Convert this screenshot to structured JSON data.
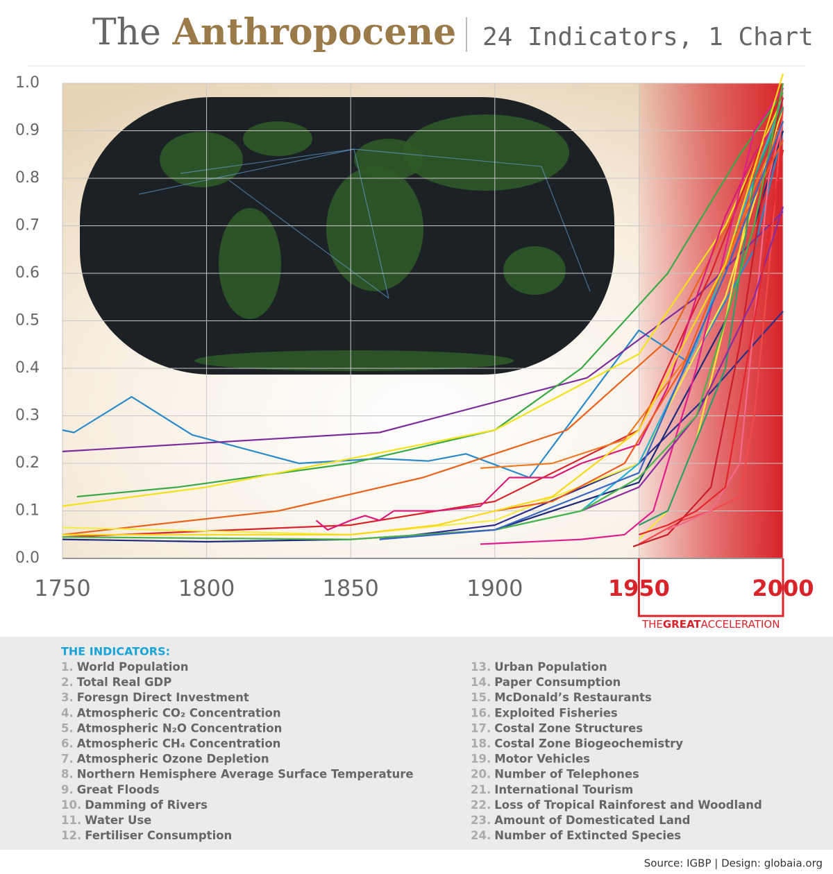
{
  "chart_data": {
    "type": "line",
    "title_prefix": "The",
    "title": "Anthropocene",
    "subtitle": "24 Indicators, 1 Chart",
    "xlim": [
      1750,
      2000
    ],
    "xticks": [
      1750,
      1800,
      1850,
      1900,
      1950,
      2000
    ],
    "ylim": [
      0,
      1
    ],
    "yticks": [
      {
        "value": 0,
        "label": "0.0"
      },
      0.1,
      0.2,
      0.3,
      0.4,
      0.5,
      0.6,
      0.7,
      0.8,
      0.9,
      {
        "value": 1,
        "label": "1.0"
      }
    ],
    "grid": true,
    "highlight": {
      "from": 1950,
      "to": 2000,
      "color": "#d8232a",
      "label_prefix": "THE",
      "label_bold": "GREAT",
      "label_suffix": "ACCELERATION"
    },
    "series": [
      {
        "color": "#2a8ac8",
        "x": [
          1750,
          1754,
          1774,
          1795,
          1832,
          1860,
          1877,
          1890,
          1912,
          1950,
          1968,
          1990,
          2000
        ],
        "values": [
          0.27,
          0.265,
          0.34,
          0.26,
          0.2,
          0.21,
          0.205,
          0.22,
          0.17,
          0.48,
          0.41,
          0.65,
          0.9
        ]
      },
      {
        "color": "#7b2d9b",
        "x": [
          1750,
          1860,
          1932,
          1970,
          2000
        ],
        "values": [
          0.225,
          0.265,
          0.38,
          0.55,
          0.73
        ]
      },
      {
        "color": "#3aa845",
        "x": [
          1755,
          1790,
          1850,
          1900,
          1930,
          1960,
          1985,
          2000
        ],
        "values": [
          0.13,
          0.15,
          0.2,
          0.27,
          0.4,
          0.6,
          0.85,
          0.98
        ]
      },
      {
        "color": "#f2e21c",
        "x": [
          1750,
          1800,
          1850,
          1900,
          1950,
          1980,
          2000
        ],
        "values": [
          0.11,
          0.15,
          0.21,
          0.27,
          0.43,
          0.7,
          0.97
        ]
      },
      {
        "color": "#e8641c",
        "x": [
          1750,
          1825,
          1875,
          1925,
          1960,
          1985,
          2000
        ],
        "values": [
          0.05,
          0.1,
          0.17,
          0.27,
          0.46,
          0.75,
          0.95
        ]
      },
      {
        "color": "#d8232a",
        "x": [
          1750,
          1850,
          1900,
          1950,
          1975,
          2000
        ],
        "values": [
          0.045,
          0.07,
          0.12,
          0.27,
          0.6,
          0.99
        ]
      },
      {
        "color": "#d81b79",
        "x": [
          1838,
          1842,
          1850,
          1855,
          1860,
          1865,
          1870,
          1880,
          1895,
          1900,
          1905,
          1920,
          1930,
          1940,
          1950,
          1960,
          1970,
          1980,
          1990,
          2000
        ],
        "values": [
          0.08,
          0.06,
          0.08,
          0.09,
          0.08,
          0.1,
          0.1,
          0.1,
          0.11,
          0.14,
          0.17,
          0.17,
          0.2,
          0.22,
          0.24,
          0.36,
          0.55,
          0.72,
          0.85,
          0.94
        ]
      },
      {
        "color": "#2b2d8c",
        "x": [
          1860,
          1900,
          1950,
          1975,
          2000
        ],
        "values": [
          0.04,
          0.07,
          0.2,
          0.35,
          0.52
        ]
      },
      {
        "color": "#f5ec4a",
        "x": [
          1750,
          1850,
          1900,
          1950,
          1980,
          2000
        ],
        "values": [
          0.065,
          0.05,
          0.08,
          0.2,
          0.55,
          0.95
        ]
      },
      {
        "color": "#1d2a7a",
        "x": [
          1750,
          1800,
          1850,
          1900,
          1950,
          1980,
          2000
        ],
        "values": [
          0.04,
          0.035,
          0.04,
          0.06,
          0.16,
          0.5,
          0.9
        ]
      },
      {
        "color": "#e01f8a",
        "x": [
          1895,
          1930,
          1945,
          1955,
          1970,
          1990,
          2000
        ],
        "values": [
          0.03,
          0.04,
          0.05,
          0.1,
          0.4,
          0.9,
          0.99
        ]
      },
      {
        "color": "#f04a4a",
        "x": [
          1950,
          1965,
          1975,
          1985,
          1990,
          1995,
          2000
        ],
        "values": [
          0.03,
          0.08,
          0.1,
          0.13,
          0.3,
          0.6,
          0.95
        ]
      },
      {
        "color": "#f7e83a",
        "x": [
          1950,
          1960,
          1970,
          1980,
          1990,
          2000
        ],
        "values": [
          0.04,
          0.1,
          0.25,
          0.5,
          0.8,
          0.97
        ]
      },
      {
        "color": "#f07a22",
        "x": [
          1895,
          1920,
          1945,
          1970,
          1990,
          2000
        ],
        "values": [
          0.19,
          0.2,
          0.25,
          0.45,
          0.78,
          0.92
        ]
      },
      {
        "color": "#25b0d8",
        "x": [
          1900,
          1930,
          1950,
          1970,
          1990,
          2000
        ],
        "values": [
          0.06,
          0.1,
          0.2,
          0.45,
          0.8,
          0.97
        ]
      },
      {
        "color": "#2a9d6a",
        "x": [
          1950,
          1960,
          1970,
          1980,
          1990,
          2000
        ],
        "values": [
          0.07,
          0.1,
          0.25,
          0.4,
          0.8,
          0.95
        ]
      },
      {
        "color": "#c81e2a",
        "x": [
          1948,
          1960,
          1975,
          1985,
          1995,
          2000
        ],
        "values": [
          0.025,
          0.05,
          0.15,
          0.45,
          0.85,
          0.97
        ]
      },
      {
        "color": "#f26a8a",
        "x": [
          1960,
          1975,
          1985,
          1990,
          1995,
          2000
        ],
        "values": [
          0.06,
          0.1,
          0.2,
          0.5,
          0.8,
          0.92
        ]
      },
      {
        "color": "#ee5a1e",
        "x": [
          1900,
          1920,
          1945,
          1965,
          1985,
          2000
        ],
        "values": [
          0.1,
          0.12,
          0.2,
          0.4,
          0.7,
          0.88
        ]
      },
      {
        "color": "#f7d81a",
        "x": [
          1750,
          1850,
          1880,
          1920,
          1950,
          1980,
          2000
        ],
        "values": [
          0.05,
          0.05,
          0.07,
          0.13,
          0.27,
          0.62,
          1.02
        ]
      },
      {
        "color": "#8a2ba0",
        "x": [
          1930,
          1950,
          1970,
          1990,
          2000
        ],
        "values": [
          0.1,
          0.15,
          0.3,
          0.55,
          0.74
        ]
      },
      {
        "color": "#4bb34a",
        "x": [
          1750,
          1850,
          1900,
          1930,
          1950,
          1970,
          1990,
          2000
        ],
        "values": [
          0.045,
          0.04,
          0.06,
          0.1,
          0.17,
          0.3,
          0.7,
          1.0
        ]
      },
      {
        "color": "#3a66c4",
        "x": [
          1860,
          1900,
          1950,
          1980,
          2000
        ],
        "values": [
          0.04,
          0.06,
          0.18,
          0.6,
          0.92
        ]
      },
      {
        "color": "#e3262e",
        "x": [
          1950,
          1960,
          1970,
          1980,
          1990,
          2000
        ],
        "values": [
          0.05,
          0.07,
          0.1,
          0.15,
          0.5,
          0.86
        ]
      }
    ]
  },
  "indicators": {
    "header": "THE INDICATORS:",
    "items": [
      {
        "number": "1.",
        "name": "World Population"
      },
      {
        "number": "2.",
        "name": "Total Real GDP"
      },
      {
        "number": "3.",
        "name": "Foresgn Direct Investment"
      },
      {
        "number": "4.",
        "name": "Atmospheric CO₂ Concentration"
      },
      {
        "number": "5.",
        "name": "Atmospheric N₂O Concentration"
      },
      {
        "number": "6.",
        "name": "Atmospheric CH₄ Concentration"
      },
      {
        "number": "7.",
        "name": "Atmospheric Ozone Depletion"
      },
      {
        "number": "8.",
        "name": "Northern Hemisphere Average Surface Temperature"
      },
      {
        "number": "9.",
        "name": "Great Floods"
      },
      {
        "number": "10.",
        "name": "Damming of Rivers"
      },
      {
        "number": "11.",
        "name": "Water Use"
      },
      {
        "number": "12.",
        "name": "Fertiliser Consumption"
      },
      {
        "number": "13.",
        "name": "Urban Population"
      },
      {
        "number": "14.",
        "name": "Paper Consumption"
      },
      {
        "number": "15.",
        "name": "McDonald’s Restaurants"
      },
      {
        "number": "16.",
        "name": "Exploited Fisheries"
      },
      {
        "number": "17.",
        "name": "Costal Zone Structures"
      },
      {
        "number": "18.",
        "name": "Costal Zone Biogeochemistry"
      },
      {
        "number": "19.",
        "name": "Motor Vehicles"
      },
      {
        "number": "20.",
        "name": "Number of Telephones"
      },
      {
        "number": "21.",
        "name": "International Tourism"
      },
      {
        "number": "22.",
        "name": "Loss of Tropical Rainforest and Woodland"
      },
      {
        "number": "23.",
        "name": "Amount of Domesticated Land"
      },
      {
        "number": "24.",
        "name": "Number of Extincted Species"
      }
    ]
  },
  "source": "Source: IGBP | Design: globaia.org"
}
